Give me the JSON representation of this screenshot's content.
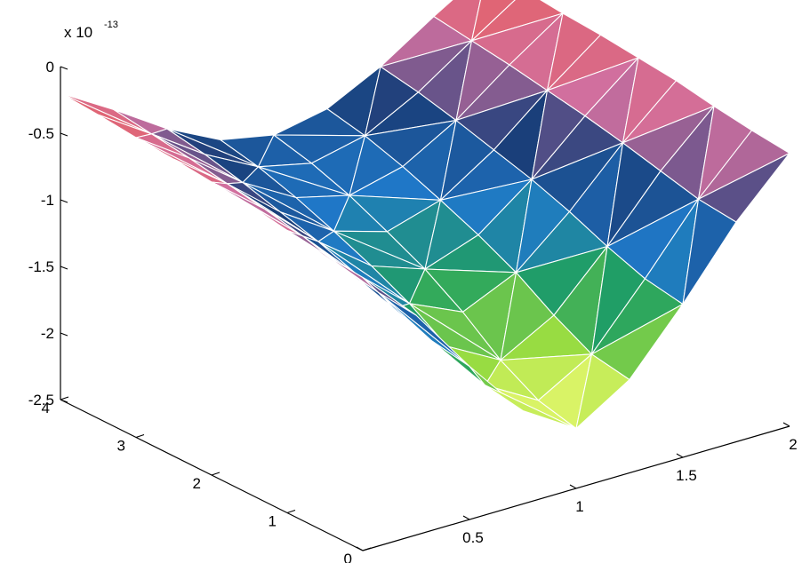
{
  "chart_data": {
    "type": "surface3d",
    "title": "",
    "xlabel": "",
    "ylabel": "",
    "zlabel": "",
    "scale_exponent_label": "x 10",
    "scale_exponent": "-13",
    "xlim": [
      0,
      2
    ],
    "ylim": [
      0,
      4
    ],
    "zlim": [
      -2.5,
      0
    ],
    "x_ticks": [
      "0",
      "0.5",
      "1",
      "1.5",
      "2"
    ],
    "y_ticks": [
      "0",
      "1",
      "2",
      "3",
      "4"
    ],
    "z_ticks": [
      "0",
      "-0.5",
      "-1",
      "-1.5",
      "-2",
      "-2.5"
    ],
    "x_tick_values": [
      0,
      0.5,
      1,
      1.5,
      2
    ],
    "y_tick_values": [
      0,
      1,
      2,
      3,
      4
    ],
    "z_tick_values": [
      0,
      -0.5,
      -1,
      -1.5,
      -2,
      -2.5
    ],
    "grid": false,
    "mesh": "triangulated",
    "colormap": [
      "#ffff80",
      "#a0e040",
      "#20a060",
      "#1f78c8",
      "#1a3f7a",
      "#d070a0",
      "#e86060"
    ],
    "surface": {
      "x": [
        0,
        0.25,
        0.5,
        0.75,
        1,
        1.25,
        1.5,
        1.75,
        2
      ],
      "y": [
        0,
        0.5,
        1,
        1.5,
        2,
        2.5,
        3,
        3.5,
        4
      ],
      "z": [
        [
          -0.45,
          -0.85,
          -1.35,
          -1.8,
          -2.05,
          -1.8,
          -1.35,
          -0.85,
          -0.45
        ],
        [
          -0.42,
          -0.82,
          -1.3,
          -1.75,
          -1.98,
          -1.75,
          -1.3,
          -0.82,
          -0.42
        ],
        [
          -0.38,
          -0.75,
          -1.2,
          -1.6,
          -1.82,
          -1.6,
          -1.2,
          -0.75,
          -0.38
        ],
        [
          -0.33,
          -0.68,
          -1.08,
          -1.42,
          -1.6,
          -1.42,
          -1.08,
          -0.68,
          -0.33
        ],
        [
          -0.3,
          -0.62,
          -0.98,
          -1.28,
          -1.42,
          -1.28,
          -0.98,
          -0.62,
          -0.3
        ],
        [
          -0.27,
          -0.57,
          -0.9,
          -1.16,
          -1.28,
          -1.16,
          -0.9,
          -0.57,
          -0.27
        ],
        [
          -0.25,
          -0.52,
          -0.82,
          -1.05,
          -1.15,
          -1.05,
          -0.82,
          -0.52,
          -0.25
        ],
        [
          -0.22,
          -0.48,
          -0.75,
          -0.96,
          -1.05,
          -0.96,
          -0.75,
          -0.48,
          -0.22
        ],
        [
          -0.2,
          -0.44,
          -0.7,
          -0.9,
          -0.98,
          -0.9,
          -0.7,
          -0.44,
          -0.2
        ]
      ]
    }
  }
}
